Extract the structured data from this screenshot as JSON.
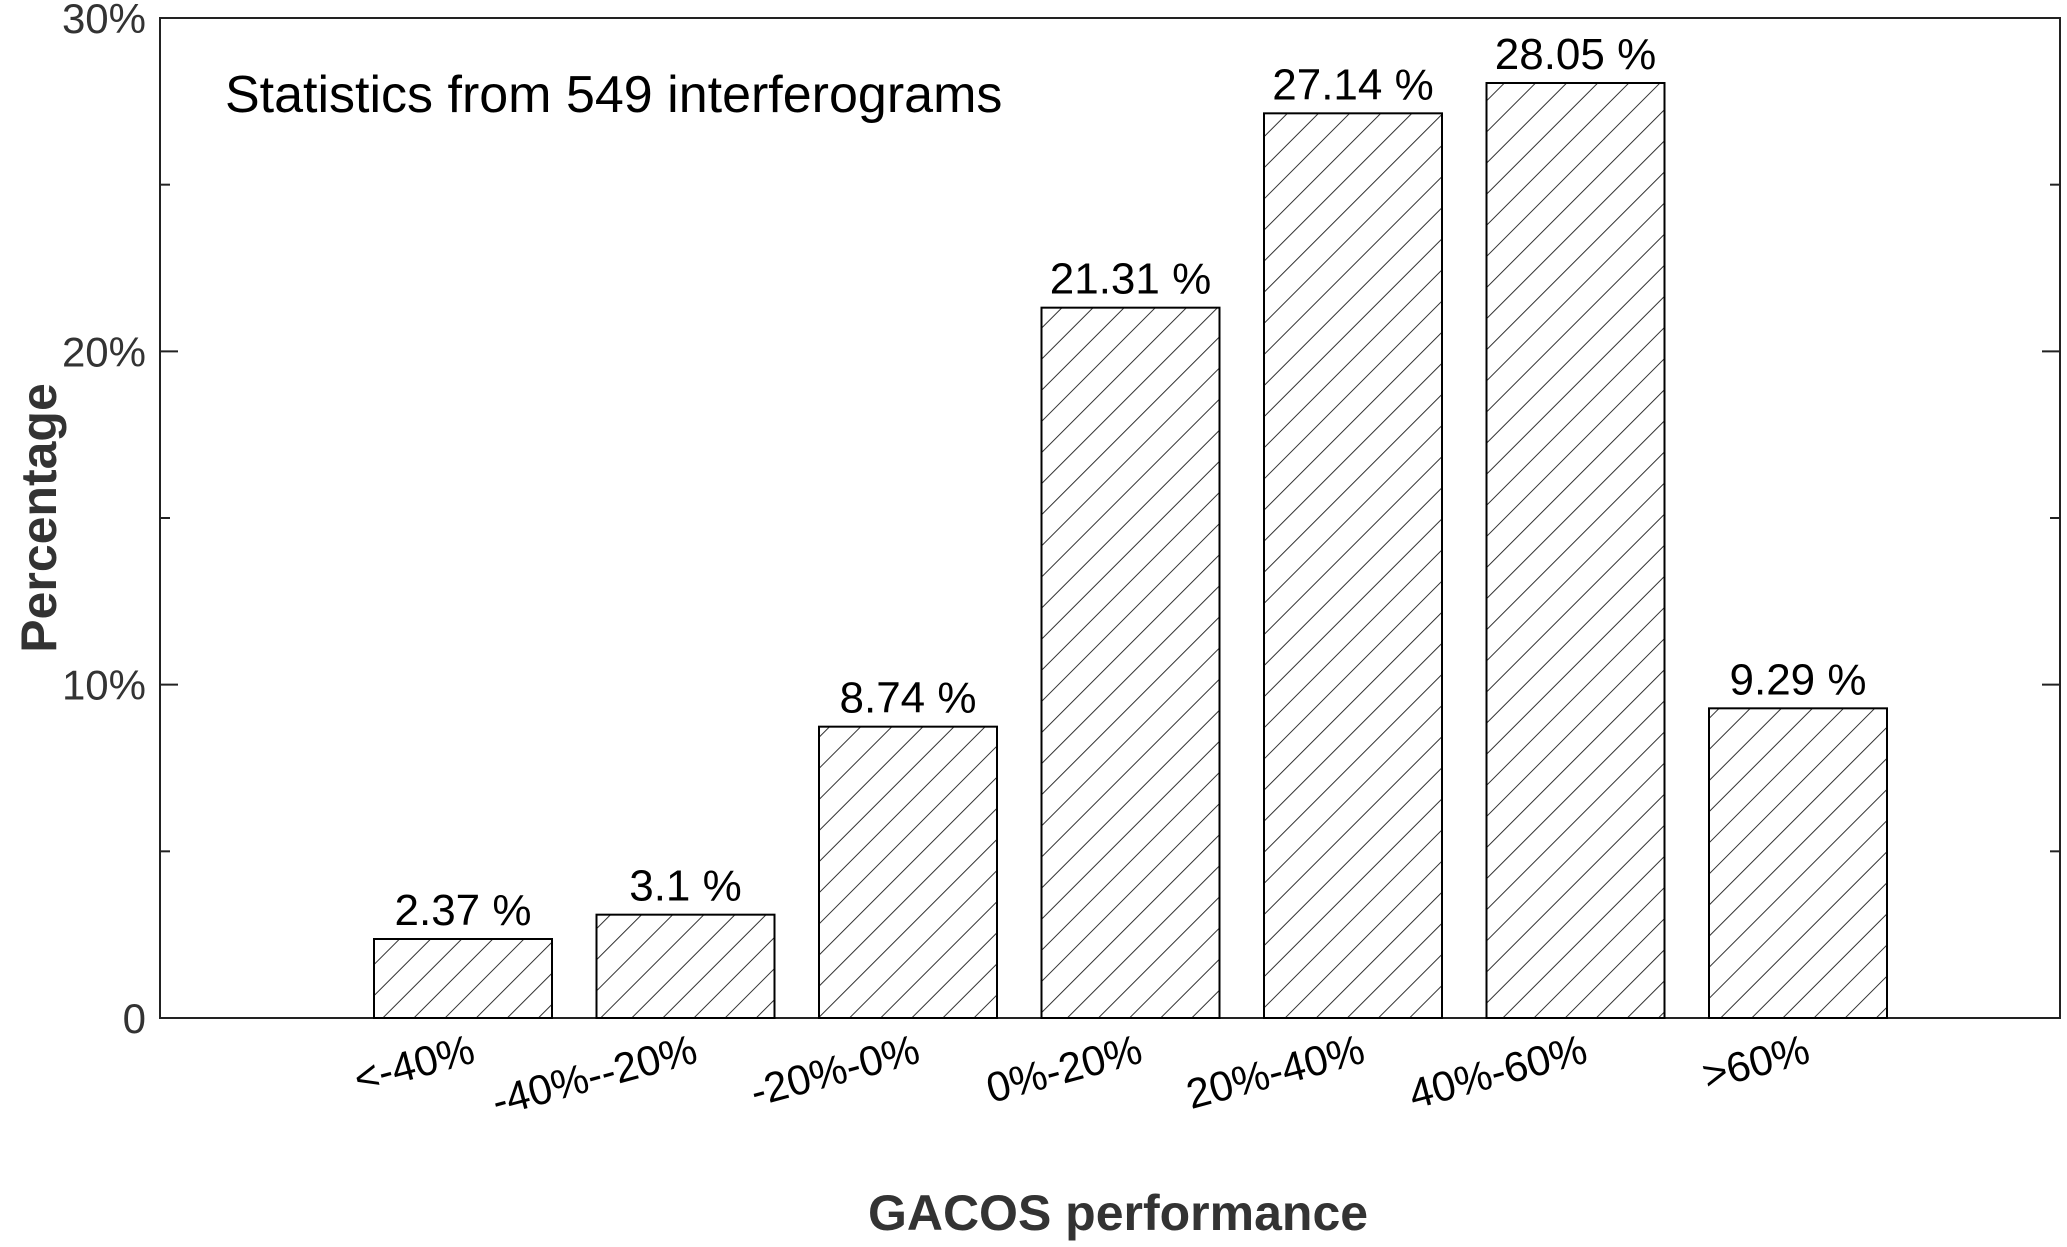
{
  "chart_data": {
    "type": "bar",
    "categories": [
      "<-40%",
      "-40%--20%",
      "-20%-0%",
      "0%-20%",
      "20%-40%",
      "40%-60%",
      ">60%"
    ],
    "values": [
      2.37,
      3.1,
      8.74,
      21.31,
      27.14,
      28.05,
      9.29
    ],
    "data_labels": [
      "2.37 %",
      "3.1 %",
      "8.74 %",
      "21.31 %",
      "27.14 %",
      "28.05 %",
      "9.29 %"
    ],
    "annotation": "Statistics from 549 interferograms",
    "xlabel": "GACOS performance",
    "ylabel": "Percentage",
    "ylim": [
      0,
      30
    ],
    "yticks": [
      0,
      10,
      20,
      30
    ],
    "ytick_labels": [
      "0",
      "10%",
      "20%",
      "30%"
    ],
    "minor_yticks": [
      5,
      15,
      25
    ],
    "bar_fill": "hatched",
    "bar_edge_color": "#000000",
    "grid": false,
    "legend": "none"
  }
}
